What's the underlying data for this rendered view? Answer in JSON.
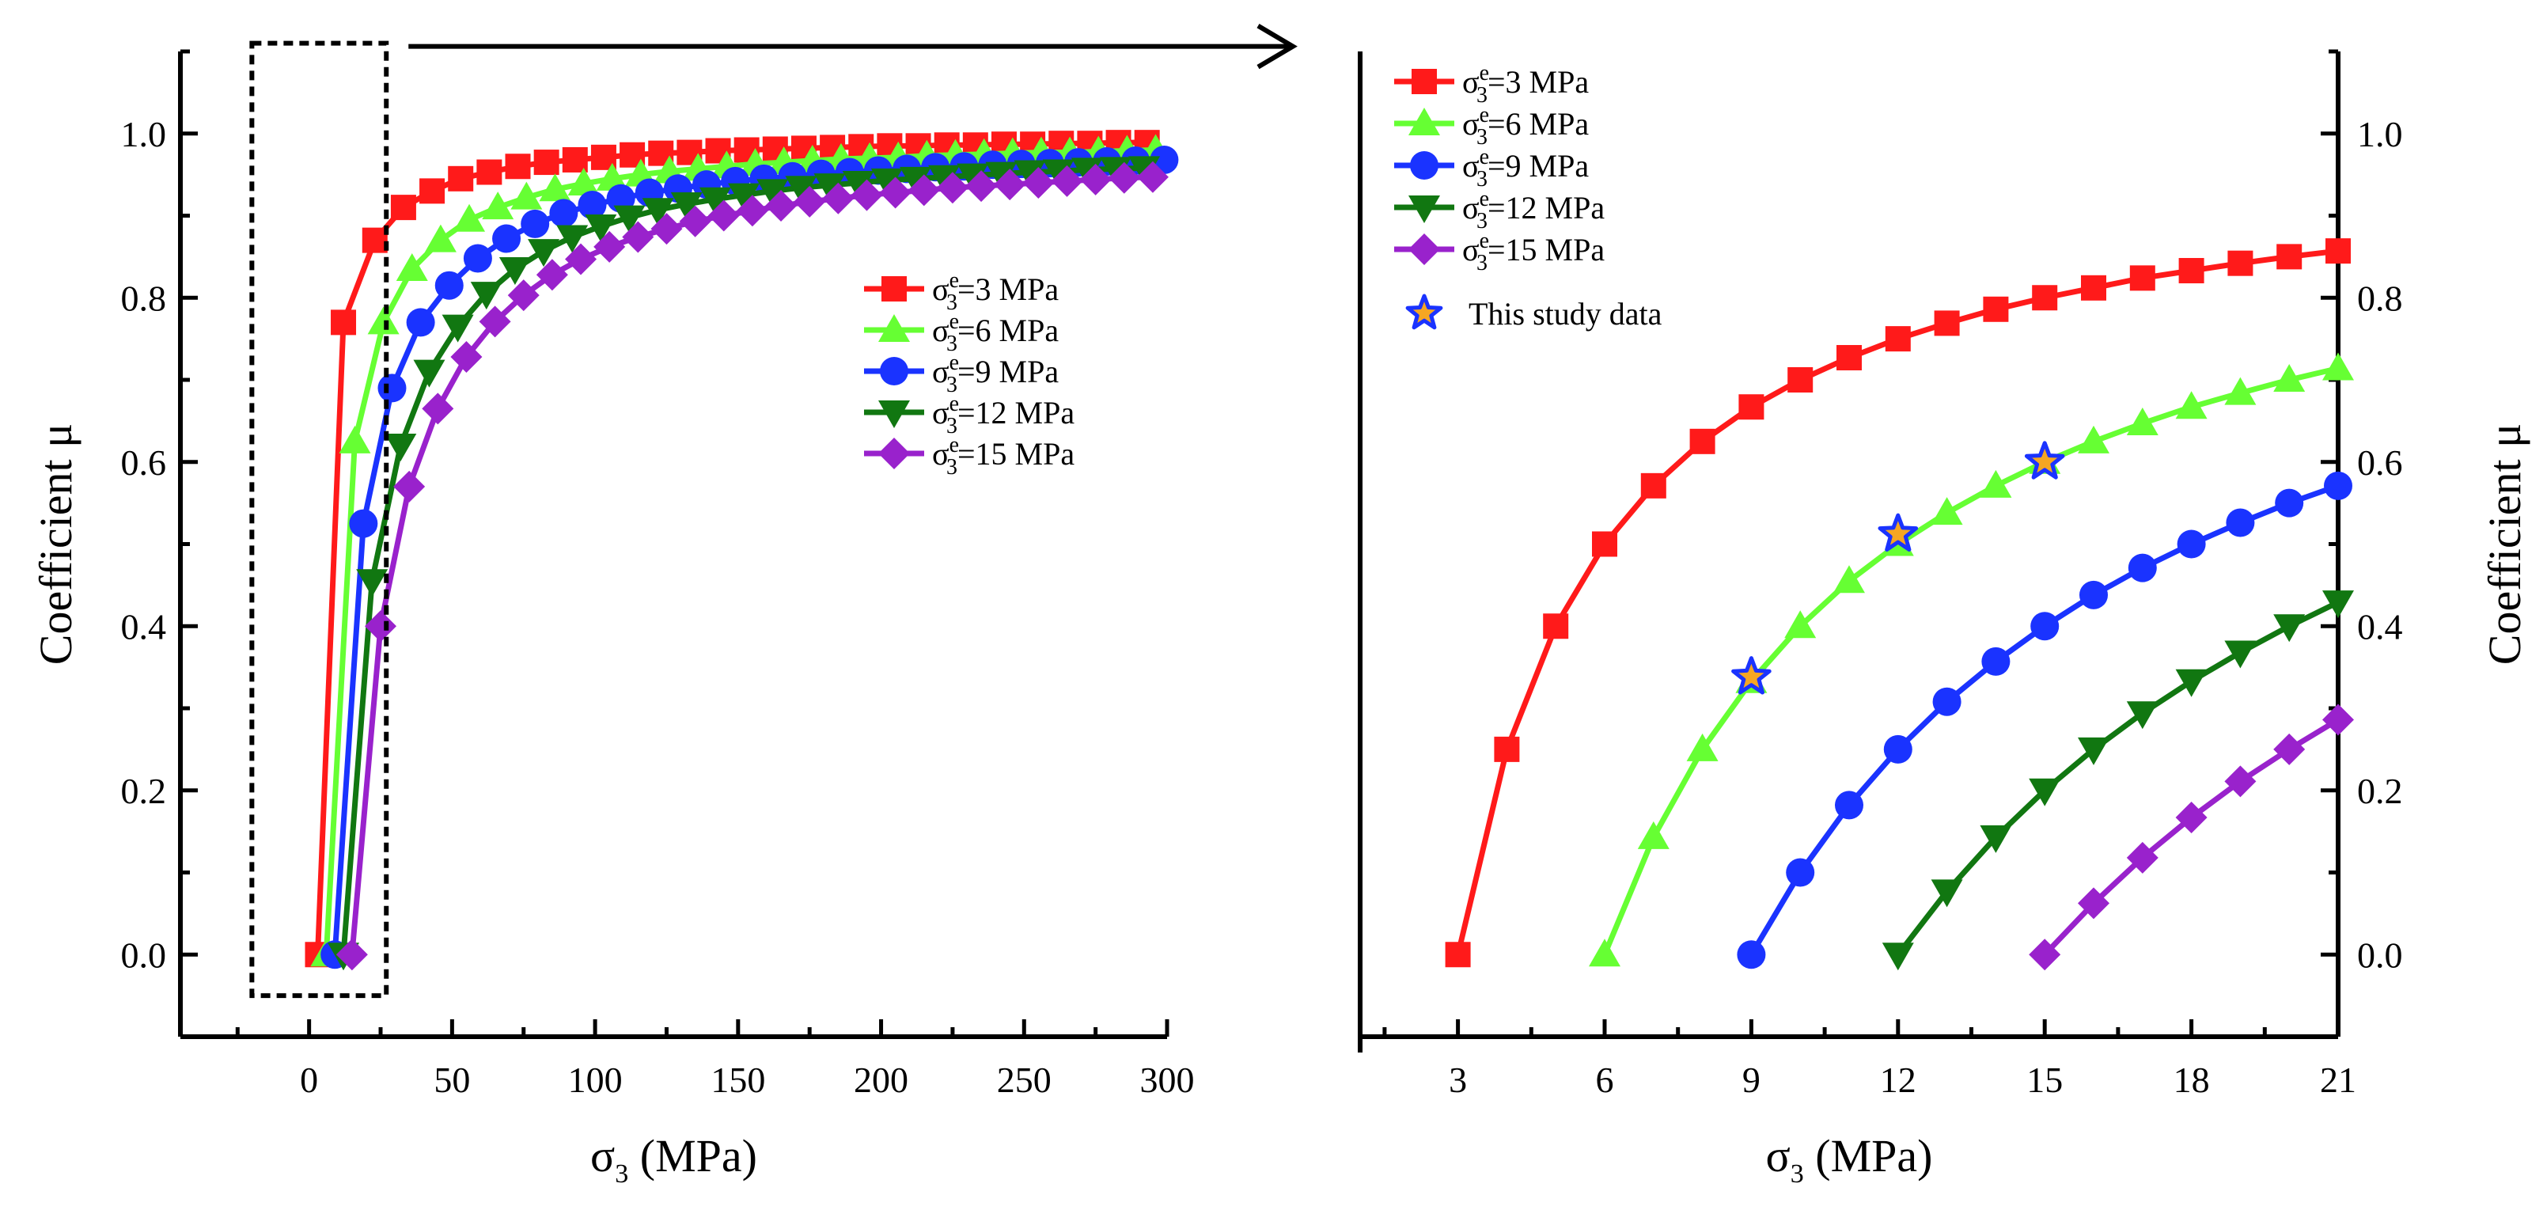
{
  "chart_data": [
    {
      "type": "line",
      "panel": "left",
      "xlabel_main": "σ",
      "xlabel_sub": "3",
      "xlabel_unit": " (MPa)",
      "ylabel": "Coefficient μ",
      "xlim": [
        -45,
        300
      ],
      "ylim": [
        -0.1,
        1.1
      ],
      "xticks": [
        0,
        50,
        100,
        150,
        200,
        250,
        300
      ],
      "xtick_labels": [
        "0",
        "50",
        "100",
        "150",
        "200",
        "250",
        "300"
      ],
      "yticks": [
        0.0,
        0.2,
        0.4,
        0.6,
        0.8,
        1.0
      ],
      "ytick_labels": [
        "0.0",
        "0.2",
        "0.4",
        "0.6",
        "0.8",
        "1.0"
      ],
      "grid": false,
      "legend_position": "center-right",
      "zoom_box": {
        "x": [
          -20,
          27
        ],
        "y": [
          -0.05,
          1.11
        ]
      },
      "series": [
        {
          "name_main": "σ",
          "name_sup": "e",
          "name_sub": "3",
          "name_tail": "=3 MPa",
          "color": "#ff1a1a",
          "marker": "square",
          "sigma_e": 3,
          "x": [
            3,
            12,
            23,
            33,
            43,
            53,
            63,
            73,
            83,
            93,
            103,
            113,
            123,
            133,
            143,
            153,
            163,
            173,
            183,
            193,
            203,
            213,
            223,
            233,
            243,
            253,
            263,
            273,
            283,
            293
          ],
          "y": [
            0.0,
            0.77,
            0.87,
            0.91,
            0.93,
            0.945,
            0.953,
            0.96,
            0.965,
            0.968,
            0.971,
            0.974,
            0.976,
            0.977,
            0.979,
            0.98,
            0.981,
            0.982,
            0.983,
            0.984,
            0.985,
            0.985,
            0.986,
            0.986,
            0.987,
            0.987,
            0.988,
            0.988,
            0.989,
            0.989
          ]
        },
        {
          "name_main": "σ",
          "name_sup": "e",
          "name_sub": "3",
          "name_tail": "=6 MPa",
          "color": "#66ff33",
          "marker": "triangle-up",
          "sigma_e": 6,
          "x": [
            6,
            16,
            26,
            36,
            46,
            56,
            66,
            76,
            86,
            96,
            106,
            116,
            126,
            136,
            146,
            156,
            166,
            176,
            186,
            196,
            206,
            216,
            226,
            236,
            246,
            256,
            266,
            276,
            286,
            296
          ],
          "y": [
            0.0,
            0.625,
            0.77,
            0.835,
            0.87,
            0.895,
            0.91,
            0.922,
            0.932,
            0.939,
            0.945,
            0.95,
            0.954,
            0.957,
            0.96,
            0.963,
            0.965,
            0.967,
            0.969,
            0.97,
            0.971,
            0.973,
            0.974,
            0.975,
            0.976,
            0.977,
            0.977,
            0.978,
            0.979,
            0.98
          ]
        },
        {
          "name_main": "σ",
          "name_sup": "e",
          "name_sub": "3",
          "name_tail": "=9 MPa",
          "color": "#1a33ff",
          "marker": "circle",
          "sigma_e": 9,
          "x": [
            9,
            19,
            29,
            39,
            49,
            59,
            69,
            79,
            89,
            99,
            109,
            119,
            129,
            139,
            149,
            159,
            169,
            179,
            189,
            199,
            209,
            219,
            229,
            239,
            249,
            259,
            269,
            279,
            289,
            299
          ],
          "y": [
            0.0,
            0.525,
            0.69,
            0.77,
            0.815,
            0.848,
            0.872,
            0.89,
            0.903,
            0.913,
            0.921,
            0.928,
            0.933,
            0.938,
            0.942,
            0.945,
            0.948,
            0.951,
            0.953,
            0.955,
            0.957,
            0.959,
            0.96,
            0.962,
            0.963,
            0.964,
            0.965,
            0.966,
            0.967,
            0.968
          ]
        },
        {
          "name_main": "σ",
          "name_sup": "e",
          "name_sub": "3",
          "name_tail": "=12 MPa",
          "color": "#117711",
          "marker": "triangle-down",
          "sigma_e": 12,
          "x": [
            12,
            22,
            32,
            42,
            52,
            62,
            72,
            82,
            92,
            102,
            112,
            122,
            132,
            142,
            152,
            162,
            172,
            182,
            192,
            202,
            212,
            222,
            232,
            242,
            252,
            262,
            272,
            282,
            292
          ],
          "y": [
            0.0,
            0.455,
            0.62,
            0.71,
            0.765,
            0.805,
            0.835,
            0.857,
            0.874,
            0.887,
            0.898,
            0.907,
            0.914,
            0.92,
            0.925,
            0.93,
            0.934,
            0.937,
            0.94,
            0.943,
            0.945,
            0.947,
            0.949,
            0.951,
            0.953,
            0.954,
            0.956,
            0.957,
            0.958
          ]
        },
        {
          "name_main": "σ",
          "name_sup": "e",
          "name_sub": "3",
          "name_tail": "=15 MPa",
          "color": "#9922cc",
          "marker": "diamond",
          "sigma_e": 15,
          "x": [
            15,
            25,
            35,
            45,
            55,
            65,
            75,
            85,
            95,
            105,
            115,
            125,
            135,
            145,
            155,
            165,
            175,
            185,
            195,
            205,
            215,
            225,
            235,
            245,
            255,
            265,
            275,
            285,
            295
          ],
          "y": [
            0.0,
            0.4,
            0.57,
            0.665,
            0.728,
            0.771,
            0.803,
            0.828,
            0.847,
            0.862,
            0.874,
            0.884,
            0.893,
            0.9,
            0.906,
            0.912,
            0.917,
            0.921,
            0.925,
            0.928,
            0.931,
            0.934,
            0.936,
            0.938,
            0.94,
            0.942,
            0.944,
            0.946,
            0.947
          ]
        }
      ]
    },
    {
      "type": "line",
      "panel": "right",
      "xlabel_main": "σ",
      "xlabel_sub": "3",
      "xlabel_unit": " (MPa)",
      "ylabel": "Coefficient μ",
      "xlim": [
        1,
        21
      ],
      "ylim": [
        -0.1,
        1.1
      ],
      "xticks": [
        3,
        6,
        9,
        12,
        15,
        18,
        21
      ],
      "xtick_labels": [
        "3",
        "6",
        "9",
        "12",
        "15",
        "18",
        "21"
      ],
      "yticks": [
        0.0,
        0.2,
        0.4,
        0.6,
        0.8,
        1.0
      ],
      "ytick_labels": [
        "0.0",
        "0.2",
        "0.4",
        "0.6",
        "0.8",
        "1.0"
      ],
      "grid": false,
      "legend_position": "top-left",
      "series": [
        {
          "name_main": "σ",
          "name_sup": "e",
          "name_sub": "3",
          "name_tail": "=3 MPa",
          "color": "#ff1a1a",
          "marker": "square",
          "sigma_e": 3,
          "x": [
            3,
            4,
            5,
            6,
            7,
            8,
            9,
            10,
            11,
            12,
            13,
            14,
            15,
            16,
            17,
            18,
            19,
            20,
            21
          ],
          "y": [
            0.0,
            0.25,
            0.4,
            0.5,
            0.571,
            0.625,
            0.667,
            0.7,
            0.727,
            0.75,
            0.769,
            0.786,
            0.8,
            0.812,
            0.824,
            0.833,
            0.842,
            0.85,
            0.857
          ]
        },
        {
          "name_main": "σ",
          "name_sup": "e",
          "name_sub": "3",
          "name_tail": "=6 MPa",
          "color": "#66ff33",
          "marker": "triangle-up",
          "sigma_e": 6,
          "x": [
            6,
            7,
            8,
            9,
            10,
            11,
            12,
            13,
            14,
            15,
            16,
            17,
            18,
            19,
            20,
            21
          ],
          "y": [
            0.0,
            0.143,
            0.25,
            0.333,
            0.4,
            0.455,
            0.5,
            0.538,
            0.571,
            0.6,
            0.625,
            0.647,
            0.667,
            0.684,
            0.7,
            0.714
          ]
        },
        {
          "name_main": "σ",
          "name_sup": "e",
          "name_sub": "3",
          "name_tail": "=9 MPa",
          "color": "#1a33ff",
          "marker": "circle",
          "sigma_e": 9,
          "x": [
            9,
            10,
            11,
            12,
            13,
            14,
            15,
            16,
            17,
            18,
            19,
            20,
            21
          ],
          "y": [
            0.0,
            0.1,
            0.182,
            0.25,
            0.308,
            0.357,
            0.4,
            0.438,
            0.471,
            0.5,
            0.526,
            0.55,
            0.571
          ]
        },
        {
          "name_main": "σ",
          "name_sup": "e",
          "name_sub": "3",
          "name_tail": "=12 MPa",
          "color": "#117711",
          "marker": "triangle-down",
          "sigma_e": 12,
          "x": [
            12,
            13,
            14,
            15,
            16,
            17,
            18,
            19,
            20,
            21
          ],
          "y": [
            0.0,
            0.077,
            0.143,
            0.2,
            0.25,
            0.294,
            0.333,
            0.368,
            0.4,
            0.429
          ]
        },
        {
          "name_main": "σ",
          "name_sup": "e",
          "name_sub": "3",
          "name_tail": "=15 MPa",
          "color": "#9922cc",
          "marker": "diamond",
          "sigma_e": 15,
          "x": [
            15,
            16,
            17,
            18,
            19,
            20,
            21
          ],
          "y": [
            0.0,
            0.0625,
            0.118,
            0.167,
            0.211,
            0.25,
            0.286
          ]
        }
      ],
      "study_data": {
        "name": "This study data",
        "fill_color": "#f5a623",
        "stroke_color": "#1a33ff",
        "x": [
          9,
          12,
          15
        ],
        "y": [
          0.338,
          0.512,
          0.6
        ]
      }
    }
  ]
}
